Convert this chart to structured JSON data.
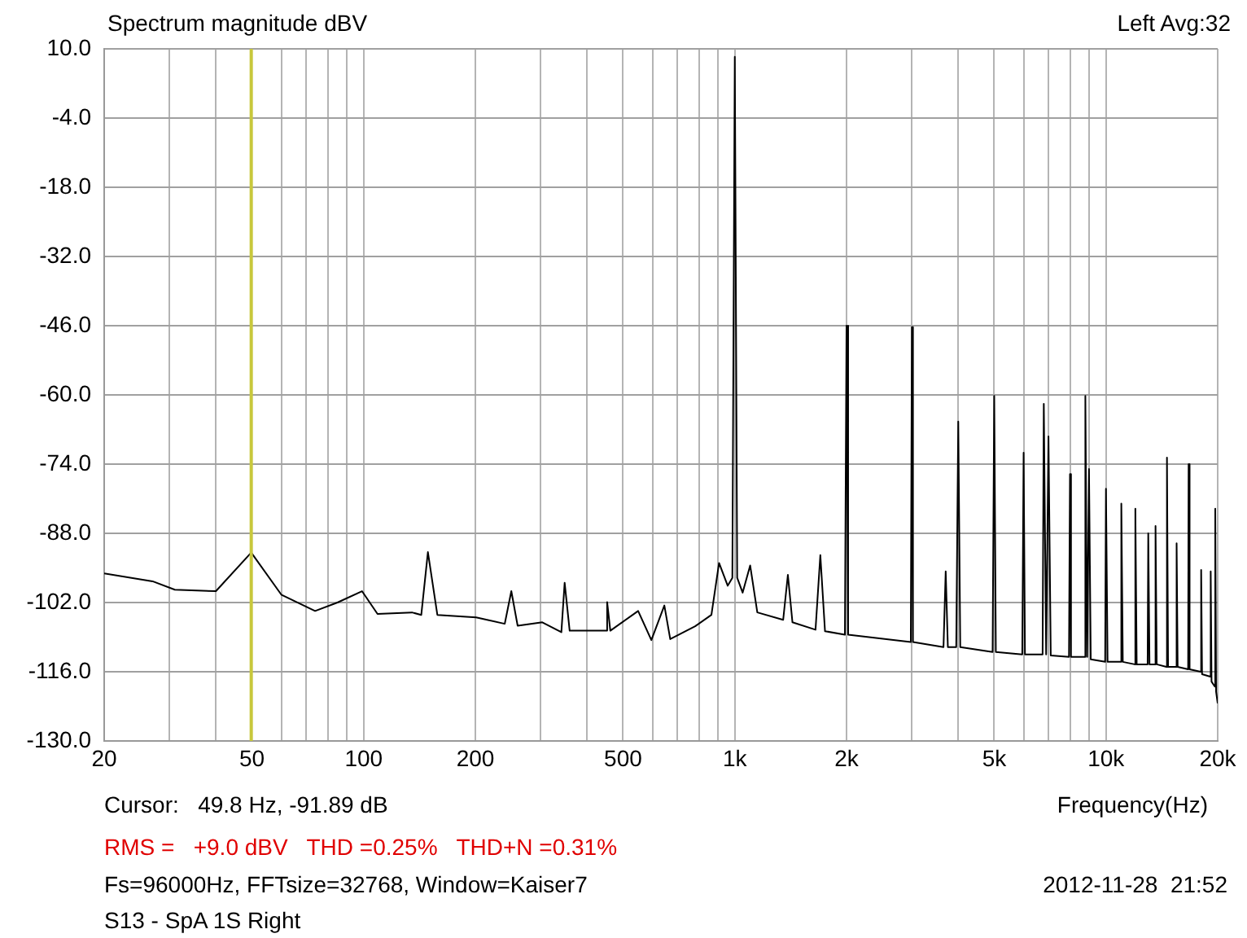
{
  "chart_data": {
    "type": "line",
    "title": "Spectrum magnitude dBV",
    "xlabel": "Frequency(Hz)",
    "annotations": [
      "Left Avg:32",
      "Cursor:   49.8 Hz, -91.89 dB",
      "RMS =   +9.0 dBV   THD =0.25%   THD+N =0.31%",
      "Fs=96000Hz, FFTsize=32768, Window=Kaiser7",
      "2012-11-28  21:52",
      "S13 - SpA 1S Right"
    ],
    "log": "x",
    "grid": true,
    "legend": false,
    "marker": "none",
    "line_style": "solid",
    "xlim": [
      20,
      20000
    ],
    "xticks": [
      20,
      {
        "value": 30,
        "label": null
      },
      {
        "value": 40,
        "label": null
      },
      50,
      {
        "value": 60,
        "label": null
      },
      {
        "value": 70,
        "label": null
      },
      {
        "value": 80,
        "label": null
      },
      {
        "value": 90,
        "label": null
      },
      100,
      200,
      {
        "value": 300,
        "label": null
      },
      {
        "value": 400,
        "label": null
      },
      500,
      {
        "value": 600,
        "label": null
      },
      {
        "value": 700,
        "label": null
      },
      {
        "value": 800,
        "label": null
      },
      {
        "value": 900,
        "label": null
      },
      {
        "value": 1000,
        "label": "1k"
      },
      {
        "value": 2000,
        "label": "2k"
      },
      {
        "value": 3000,
        "label": null
      },
      {
        "value": 4000,
        "label": null
      },
      {
        "value": 5000,
        "label": "5k"
      },
      {
        "value": 6000,
        "label": null
      },
      {
        "value": 7000,
        "label": null
      },
      {
        "value": 8000,
        "label": null
      },
      {
        "value": 9000,
        "label": null
      },
      {
        "value": 10000,
        "label": "10k"
      },
      {
        "value": 20000,
        "label": "20k"
      }
    ],
    "ylim": [
      -130,
      10
    ],
    "yticks": [
      {
        "value": -130,
        "label": "-130.0"
      },
      {
        "value": -116,
        "label": "-116.0"
      },
      {
        "value": -102,
        "label": "-102.0"
      },
      {
        "value": -88,
        "label": "-88.0"
      },
      {
        "value": -74,
        "label": "-74.0"
      },
      {
        "value": -60,
        "label": "-60.0"
      },
      {
        "value": -46,
        "label": "-46.0"
      },
      {
        "value": -32,
        "label": "-32.0"
      },
      {
        "value": -18,
        "label": "-18.0"
      },
      {
        "value": -4,
        "label": "-4.0"
      },
      {
        "value": 10,
        "label": "10.0"
      }
    ],
    "ref_lines": [
      {
        "axis": "x",
        "value": 49.8,
        "color": "#c8c83c"
      }
    ],
    "series": [
      {
        "color": "#000000",
        "x": [
          20,
          27,
          31,
          40,
          49.8,
          60,
          74,
          85,
          99,
          109,
          135,
          143,
          149,
          158,
          201,
          240,
          250,
          260,
          303,
          341,
          348,
          359,
          449,
          453,
          462,
          549,
          596,
          646,
          670,
          782,
          865,
          907,
          957,
          985,
          1000,
          1015,
          1050,
          1100,
          1150,
          1350,
          1390,
          1430,
          1650,
          1700,
          1750,
          1980,
          2000,
          2020,
          2980,
          3000,
          3020,
          3650,
          3700,
          3750,
          3950,
          4000,
          4050,
          4950,
          5000,
          5050,
          5950,
          6000,
          6050,
          6750,
          6800,
          6900,
          7000,
          7100,
          7950,
          8000,
          8050,
          8750,
          8800,
          8900,
          9000,
          9100,
          9950,
          10000,
          10100,
          10950,
          11000,
          11100,
          11950,
          12000,
          12100,
          12950,
          13000,
          13100,
          13500,
          13600,
          13700,
          14550,
          14600,
          14700,
          15450,
          15500,
          15600,
          16650,
          16700,
          16800,
          18000,
          18050,
          18150,
          19100,
          19150,
          19250,
          19650,
          19700,
          19800,
          20000
        ],
        "values": [
          -96.1,
          -97.7,
          -99.4,
          -99.7,
          -91.9,
          -100.4,
          -103.7,
          -102,
          -99.7,
          -104.3,
          -104,
          -104.5,
          -91.8,
          -104.5,
          -105,
          -106.3,
          -99.7,
          -106.7,
          -106,
          -108,
          -98,
          -107.7,
          -107.7,
          -101.9,
          -107.7,
          -103.7,
          -109.6,
          -102.6,
          -109.4,
          -106.8,
          -104.5,
          -94,
          -98.6,
          -97,
          8.4,
          -97,
          -100,
          -94.5,
          -104,
          -105.5,
          -96.4,
          -106,
          -107.5,
          -92.4,
          -107.8,
          -108.5,
          -46,
          -108.5,
          -110,
          -46.3,
          -110,
          -111,
          -95.7,
          -111,
          -111,
          -65.4,
          -111,
          -112,
          -60.2,
          -112,
          -112.5,
          -71.7,
          -112.5,
          -112.5,
          -61.8,
          -112.5,
          -68.4,
          -112.7,
          -113,
          -76,
          -113,
          -113,
          -60.2,
          -113,
          -75,
          -113.5,
          -114,
          -79,
          -114,
          -114,
          -82,
          -114,
          -114.5,
          -83,
          -114.5,
          -114.5,
          -88,
          -114.5,
          -114.5,
          -86.5,
          -114.5,
          -115,
          -72.7,
          -115,
          -115,
          -90,
          -115,
          -115.5,
          -74,
          -115.5,
          -116,
          -95.4,
          -116.5,
          -117,
          -95.7,
          -118,
          -119,
          -83,
          -120,
          -122.4
        ]
      }
    ]
  }
}
